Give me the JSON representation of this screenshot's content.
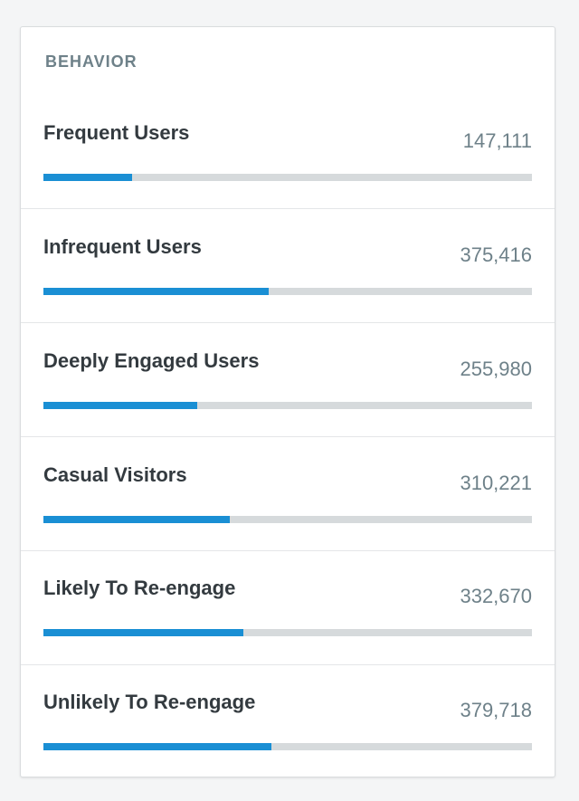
{
  "card": {
    "title": "BEHAVIOR",
    "accent_color": "#1a8fd4",
    "rows": [
      {
        "label": "Frequent Users",
        "value": "147,111",
        "fill": 0.181
      },
      {
        "label": "Infrequent Users",
        "value": "375,416",
        "fill": 0.461
      },
      {
        "label": "Deeply Engaged Users",
        "value": "255,980",
        "fill": 0.314
      },
      {
        "label": "Casual Visitors",
        "value": "310,221",
        "fill": 0.382
      },
      {
        "label": "Likely To Re-engage",
        "value": "332,670",
        "fill": 0.41
      },
      {
        "label": "Unlikely To Re-engage",
        "value": "379,718",
        "fill": 0.467
      }
    ]
  }
}
